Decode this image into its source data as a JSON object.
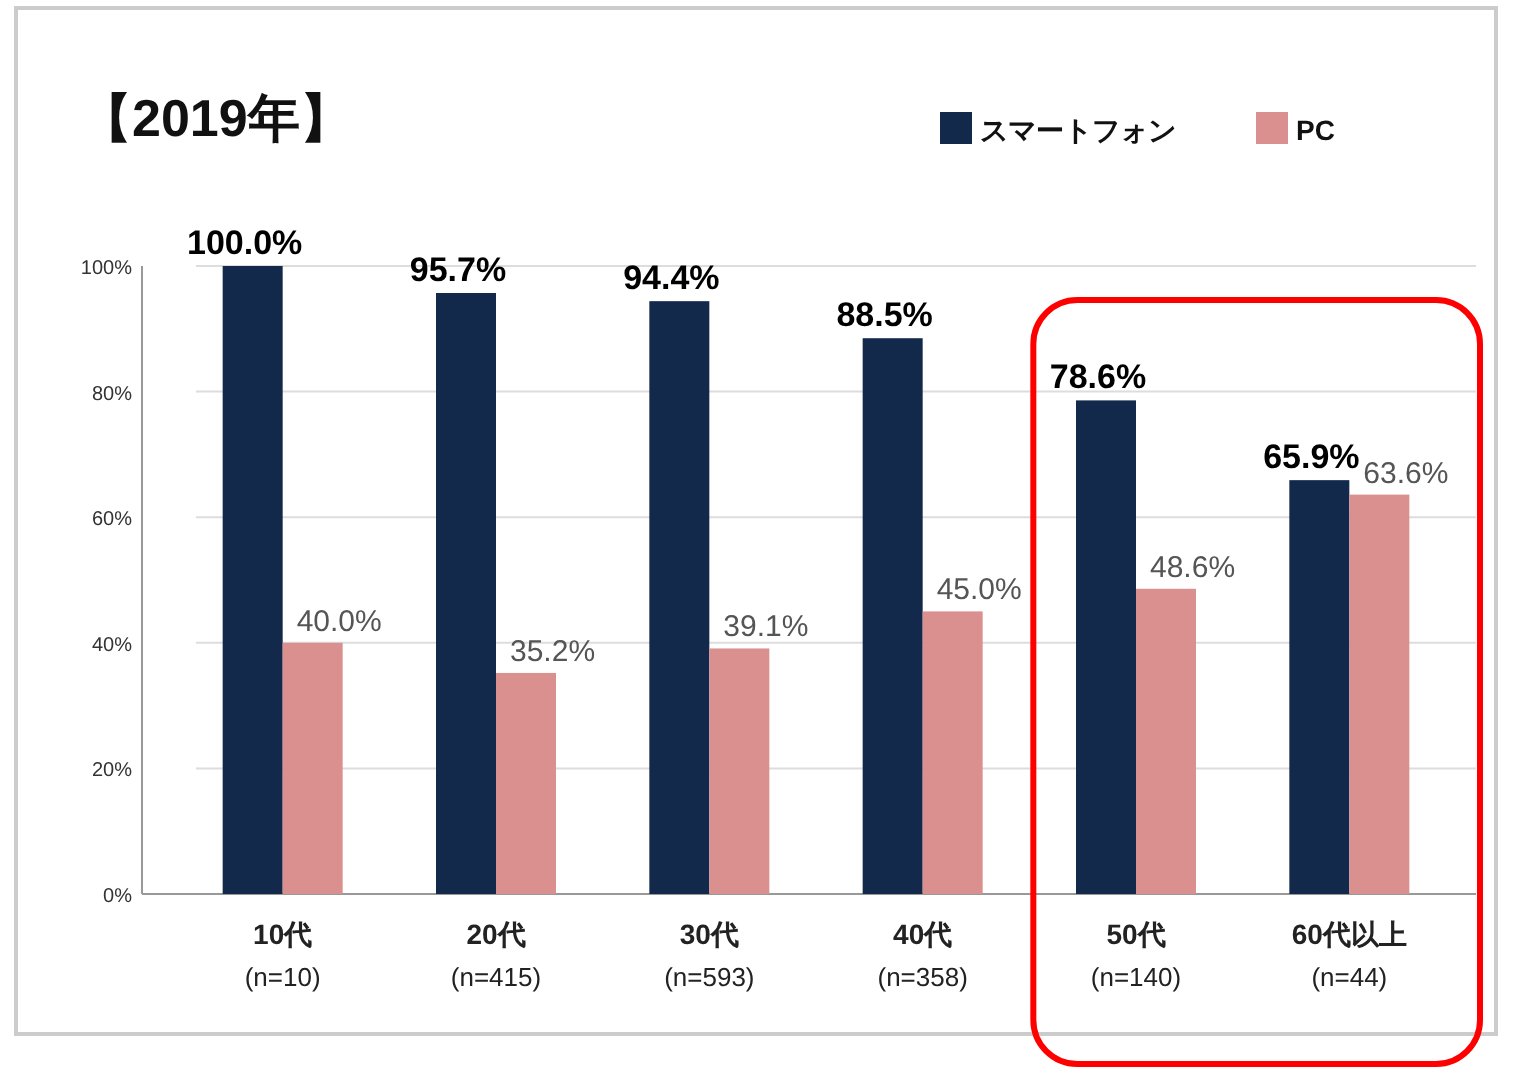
{
  "chart_data": {
    "type": "bar",
    "title": "【2019年】",
    "categories": [
      "10代\n(n=10)",
      "20代\n(n=415)",
      "30代\n(n=593)",
      "40代\n(n=358)",
      "50代\n(n=140)",
      "60代以上\n(n=44)"
    ],
    "series": [
      {
        "name": "スマートフォン",
        "color": "#13294b",
        "values": [
          100.0,
          95.7,
          94.4,
          88.5,
          78.6,
          65.9
        ],
        "value_labels": [
          "100.0%",
          "95.7%",
          "94.4%",
          "88.5%",
          "78.6%",
          "65.9%"
        ]
      },
      {
        "name": "PC",
        "color": "#d9908e",
        "values": [
          40.0,
          35.2,
          39.1,
          45.0,
          48.6,
          63.6
        ],
        "value_labels": [
          "40.0%",
          "35.2%",
          "39.1%",
          "45.0%",
          "48.6%",
          "63.6%"
        ]
      }
    ],
    "ylim": [
      0,
      100
    ],
    "yticks": [
      {
        "value": 0,
        "label": "0%"
      },
      {
        "value": 20,
        "label": "20%"
      },
      {
        "value": 40,
        "label": "40%"
      },
      {
        "value": 60,
        "label": "60%"
      },
      {
        "value": 80,
        "label": "80%"
      },
      {
        "value": 100,
        "label": "100%"
      }
    ],
    "grid": "y",
    "legend": "top right"
  }
}
